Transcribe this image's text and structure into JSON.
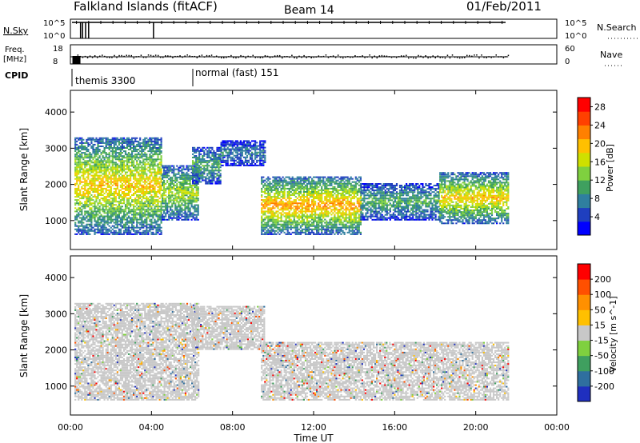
{
  "header": {
    "title": "Falkland Islands (fitACF)",
    "beam": "Beam 14",
    "date": "01/Feb/2011"
  },
  "status_panels": {
    "nsky": {
      "label": "N.Sky",
      "right_label": "N.Search",
      "left_ticks": [
        "10^5",
        "10^0"
      ],
      "right_ticks": [
        "10^5",
        "10^0"
      ]
    },
    "freq": {
      "label_line1": "Freq.",
      "label_line2": "[MHz]",
      "right_label": "Nave",
      "left_ticks": [
        "18",
        "8"
      ],
      "right_ticks": [
        "60",
        "0"
      ]
    },
    "cpid": {
      "label": "CPID",
      "modes": [
        {
          "name": "themis 3300",
          "start_hour": 0
        },
        {
          "name": "normal (fast) 151",
          "start_hour": 6
        }
      ]
    }
  },
  "chart_data": [
    {
      "type": "heatmap",
      "name": "power",
      "ylabel": "Slant Range [km]",
      "xlabel": "",
      "xlim_hours": [
        0,
        24
      ],
      "ylim": [
        200,
        4600
      ],
      "y_ticks": [
        1000,
        2000,
        3000,
        4000
      ],
      "colorbar": {
        "label": "Power [dB]",
        "ticks": [
          4,
          8,
          12,
          16,
          20,
          24,
          28
        ],
        "range": [
          0,
          30
        ],
        "colors": [
          "#0000ff",
          "#1f3fbf",
          "#2f7f9f",
          "#3fa05f",
          "#7fd03f",
          "#cfe000",
          "#ffc000",
          "#ff8000",
          "#ff4000",
          "#ff0000"
        ]
      },
      "bands": [
        {
          "t0": 0.2,
          "t1": 4.5,
          "r_lo": 600,
          "r_hi": 3300,
          "level": 18
        },
        {
          "t0": 4.5,
          "t1": 6.3,
          "r_lo": 1000,
          "r_hi": 2500,
          "level": 14
        },
        {
          "t0": 6.0,
          "t1": 7.4,
          "r_lo": 2000,
          "r_hi": 3000,
          "level": 10
        },
        {
          "t0": 7.4,
          "t1": 9.6,
          "r_lo": 2500,
          "r_hi": 3200,
          "level": 6
        },
        {
          "t0": 9.4,
          "t1": 14.3,
          "r_lo": 600,
          "r_hi": 2200,
          "level": 20
        },
        {
          "t0": 14.3,
          "t1": 18.2,
          "r_lo": 1000,
          "r_hi": 2000,
          "level": 10
        },
        {
          "t0": 18.2,
          "t1": 21.6,
          "r_lo": 900,
          "r_hi": 2300,
          "level": 18
        }
      ]
    },
    {
      "type": "heatmap",
      "name": "velocity",
      "ylabel": "Slant Range [km]",
      "xlabel": "Time UT",
      "xlim_hours": [
        0,
        24
      ],
      "x_ticks": [
        "00:00",
        "04:00",
        "08:00",
        "12:00",
        "16:00",
        "20:00",
        "00:00"
      ],
      "ylim": [
        200,
        4600
      ],
      "y_ticks": [
        1000,
        2000,
        3000,
        4000
      ],
      "colorbar": {
        "label": "Velocity [m s^-1]",
        "ticks": [
          "200",
          "100",
          "50",
          "15",
          "-15",
          "-50",
          "-100",
          "-200"
        ],
        "colors": [
          "#1f2fbf",
          "#2f6f9f",
          "#3f9f5f",
          "#7fd03f",
          "#c8c8c8",
          "#ffc000",
          "#ff9000",
          "#ff5000",
          "#ff0000"
        ]
      },
      "bands": [
        {
          "t0": 0.2,
          "t1": 6.3,
          "r_lo": 600,
          "r_hi": 3300,
          "level": 0
        },
        {
          "t0": 6.0,
          "t1": 9.6,
          "r_lo": 2000,
          "r_hi": 3200,
          "level": 0
        },
        {
          "t0": 9.4,
          "t1": 21.6,
          "r_lo": 600,
          "r_hi": 2200,
          "level": 0
        }
      ]
    }
  ]
}
